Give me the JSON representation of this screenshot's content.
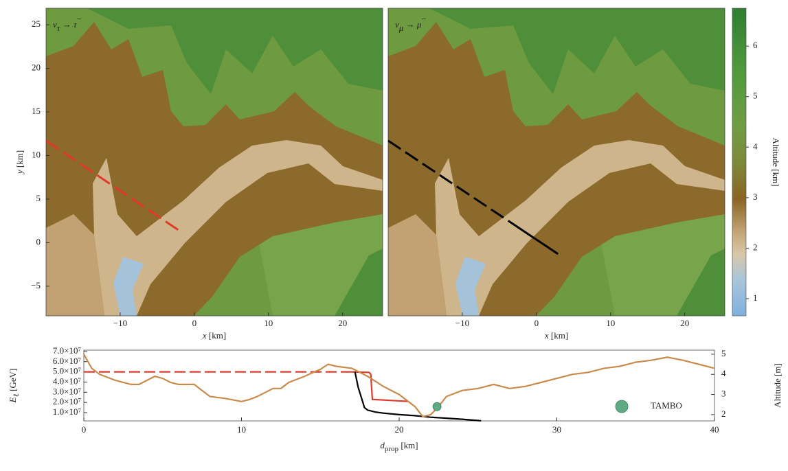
{
  "chart_data": [
    {
      "type": "terrain",
      "title": {
        "main": "ν",
        "sub": "τ",
        "arrow": " → τ",
        "charge": "−"
      },
      "xlim": [
        -20,
        25.4
      ],
      "ylim": [
        -8.4,
        26.9
      ],
      "xticks": [
        {
          "value": -10,
          "label": "−10"
        },
        0,
        10,
        20
      ],
      "yticks": [
        {
          "value": -5,
          "label": "−5"
        },
        0,
        5,
        10,
        15,
        20,
        25
      ],
      "xlabel": {
        "symbol": "x",
        "unit": " [km]"
      },
      "ylabel": {
        "symbol": "y",
        "unit": " [km]"
      },
      "series": [
        {
          "color": "#e0392b",
          "linestyle": "dashed",
          "x": [
            -20,
            -1.9
          ],
          "values": [
            11.7,
            1.3
          ]
        }
      ]
    },
    {
      "type": "terrain",
      "title": {
        "main": "ν",
        "sub": "μ",
        "arrow": " → μ",
        "charge": "−"
      },
      "xlim": [
        -20,
        25.4
      ],
      "ylim": [
        -8.4,
        26.9
      ],
      "xticks": [
        {
          "value": -10,
          "label": "−10"
        },
        0,
        10,
        20
      ],
      "xlabel": {
        "symbol": "x",
        "unit": " [km]"
      },
      "series": [
        {
          "color": "#000000",
          "linestyle": "dashed",
          "x": [
            -20,
            -3.5
          ],
          "values": [
            11.7,
            2.33
          ]
        },
        {
          "color": "#000000",
          "linestyle": "solid",
          "x": [
            -3.5,
            2.9
          ],
          "values": [
            2.33,
            -1.3
          ]
        }
      ],
      "colorbar": {
        "label": "Altitude [km]",
        "lim": [
          0.66,
          6.75
        ],
        "ticks": [
          1,
          2,
          3,
          4,
          5,
          6
        ]
      }
    },
    {
      "type": "line",
      "xlim": [
        0,
        40
      ],
      "xticks": [
        0,
        10,
        20,
        30,
        40
      ],
      "ylim": [
        1900000,
        71300000
      ],
      "yticks": [
        {
          "value": 10000000,
          "label": "1.0×10⁷"
        },
        {
          "value": 20000000,
          "label": "2.0×10⁷"
        },
        {
          "value": 30000000,
          "label": "3.0×10⁷"
        },
        {
          "value": 40000000,
          "label": "4.0×10⁷"
        },
        {
          "value": 50000000,
          "label": "5.0×10⁷"
        },
        {
          "value": 60000000,
          "label": "6.0×10⁷"
        },
        {
          "value": 70000000,
          "label": "7.0×10⁷"
        }
      ],
      "y2lim": [
        1.69,
        5.2
      ],
      "y2ticks": [
        2,
        3,
        4,
        5
      ],
      "xlabel": {
        "symbol": "d",
        "sub": "prop",
        "unit": " [km]"
      },
      "ylabel": {
        "symbol": "E",
        "sub": "ℓ",
        "unit": " [GeV]"
      },
      "y2label": "Altitude [m]",
      "legend": "lower right",
      "series": [
        {
          "color": "#e0392b",
          "linestyle": "dashed",
          "x": [
            0,
            17
          ],
          "values": [
            50000000,
            50000000
          ]
        },
        {
          "color": "#e0392b",
          "linestyle": "solid",
          "x": [
            17,
            18.1,
            18.2,
            18.3,
            20.6
          ],
          "values": [
            50000000,
            49500000,
            47500000,
            23000000,
            21000000
          ]
        },
        {
          "color": "#000000",
          "linestyle": "solid",
          "x": [
            17.2,
            17.4,
            17.6,
            17.8,
            18.0,
            18.5,
            19,
            20,
            21,
            22,
            23,
            24,
            25.2
          ],
          "values": [
            50000000,
            35000000,
            25000000,
            15000000,
            12500000,
            10500000,
            9500000,
            8000000,
            7000000,
            5500000,
            4500000,
            3500000,
            2000000
          ]
        },
        {
          "color": "#c98a4b",
          "linestyle": "solid",
          "axis": "y2",
          "x": [
            0,
            0.5,
            1,
            2,
            3,
            3.5,
            4,
            4.5,
            5,
            5.5,
            6,
            7,
            7.5,
            8,
            9,
            10,
            10.5,
            11,
            12,
            12.5,
            13,
            14,
            15,
            15.5,
            16,
            17,
            18,
            19,
            20,
            21,
            21.5,
            22,
            22.5,
            23,
            24,
            25,
            26,
            27,
            28,
            29,
            30,
            31,
            32,
            33,
            34,
            35,
            36,
            37,
            38,
            39,
            40
          ],
          "values": [
            5.0,
            4.3,
            4.0,
            3.7,
            3.5,
            3.5,
            3.7,
            3.9,
            3.8,
            3.6,
            3.5,
            3.5,
            3.2,
            2.9,
            2.8,
            2.65,
            2.75,
            2.9,
            3.3,
            3.3,
            3.6,
            3.9,
            4.25,
            4.5,
            4.4,
            4.3,
            3.9,
            3.4,
            3.0,
            2.4,
            1.9,
            2.0,
            2.4,
            2.9,
            3.2,
            3.3,
            3.5,
            3.3,
            3.4,
            3.6,
            3.8,
            4.0,
            4.1,
            4.3,
            4.4,
            4.6,
            4.7,
            4.85,
            4.7,
            4.5,
            4.3
          ]
        },
        {
          "name": "TAMBO",
          "type": "marker",
          "color": "#5fa983",
          "axis": "y2",
          "x": [
            22.4
          ],
          "values": [
            2.4
          ]
        }
      ]
    }
  ]
}
